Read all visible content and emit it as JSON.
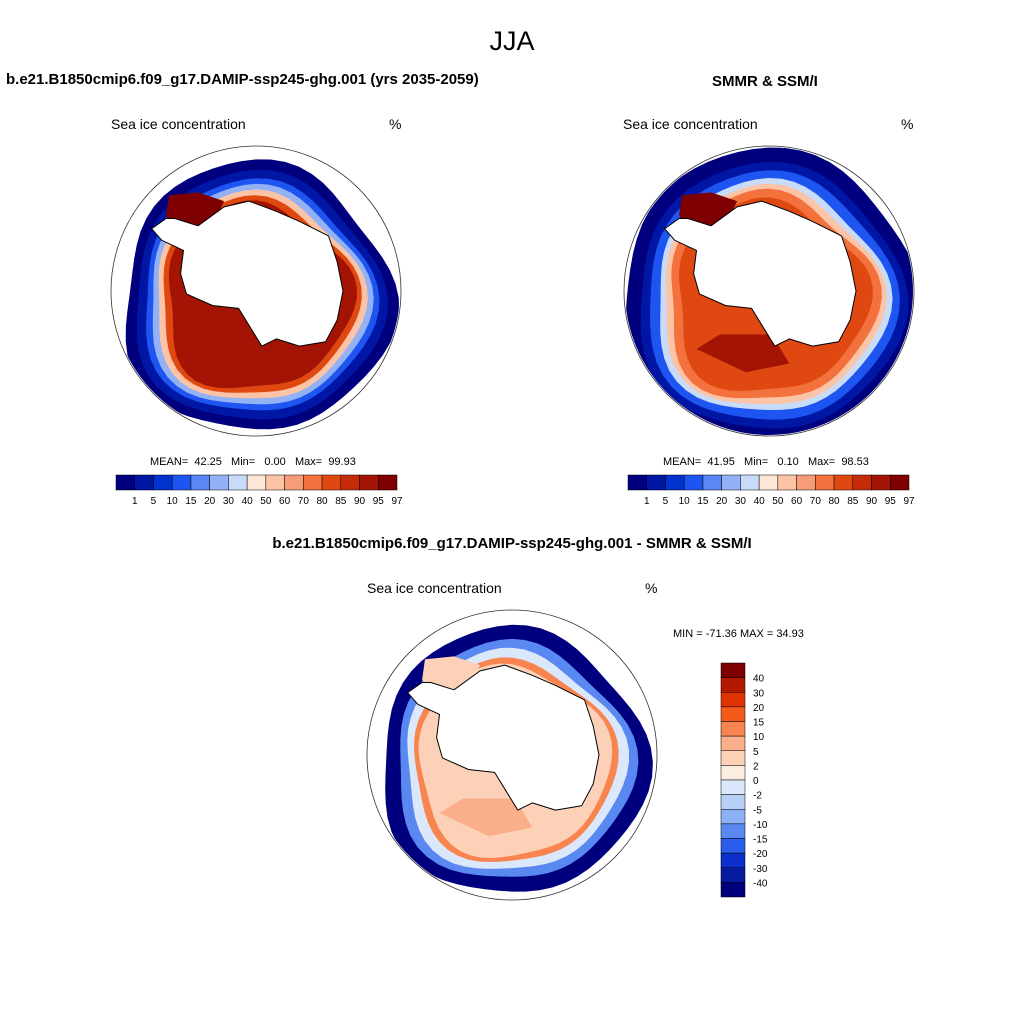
{
  "figure": {
    "title": "JJA"
  },
  "panels": [
    {
      "title": "b.e21.B1850cmip6.f09_g17.DAMIP-ssp245-ghg.001 (yrs 2035-2059)",
      "variable": "Sea ice concentration",
      "units": "%",
      "stats": {
        "mean_label": "MEAN=",
        "mean": "42.25",
        "min_label": "Min=",
        "min": "0.00",
        "max_label": "Max=",
        "max": "99.93"
      }
    },
    {
      "title": "SMMR & SSM/I",
      "variable": "Sea ice concentration",
      "units": "%",
      "stats": {
        "mean_label": "MEAN=",
        "mean": "41.95",
        "min_label": "Min=",
        "min": "0.10",
        "max_label": "Max=",
        "max": "98.53"
      }
    },
    {
      "title": "b.e21.B1850cmip6.f09_g17.DAMIP-ssp245-ghg.001 - SMMR & SSM/I",
      "variable": "Sea ice concentration",
      "units": "%",
      "minmax_text": "MIN = -71.36 MAX =  34.93"
    }
  ],
  "colorbar_levels": [
    "1",
    "5",
    "10",
    "15",
    "20",
    "30",
    "40",
    "50",
    "60",
    "70",
    "80",
    "85",
    "90",
    "95",
    "97"
  ],
  "colorbar_colors": [
    "#00007f",
    "#0016a5",
    "#0032d0",
    "#1e54f0",
    "#5b86f4",
    "#93b2f6",
    "#c8dbf9",
    "#fde6d8",
    "#fcc4a6",
    "#f89c78",
    "#f2713c",
    "#e04812",
    "#c52b08",
    "#a31405",
    "#7f0000"
  ],
  "diff_levels": [
    "40",
    "30",
    "20",
    "15",
    "10",
    "5",
    "2",
    "0",
    "-2",
    "-5",
    "-10",
    "-15",
    "-20",
    "-30",
    "-40"
  ],
  "diff_colors": [
    "#7f0000",
    "#b51800",
    "#dd3300",
    "#f45a1a",
    "#f88550",
    "#fbae8a",
    "#fdd1b8",
    "#fdece0",
    "#dbe7fa",
    "#b8d0f7",
    "#8cb1f4",
    "#5a88f1",
    "#2a5cee",
    "#0b30cc",
    "#051a9e",
    "#00007f"
  ],
  "map_colors": {
    "land": "#ffffff",
    "coast": "#000000",
    "circle": "#333333"
  }
}
